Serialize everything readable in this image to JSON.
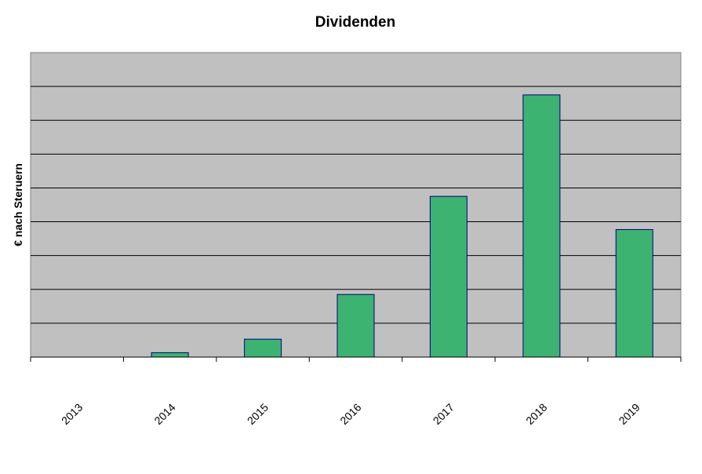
{
  "chart_data": {
    "type": "bar",
    "title": "Dividenden",
    "xlabel": "",
    "ylabel": "€ nach Steruern",
    "categories": [
      "2013",
      "2014",
      "2015",
      "2016",
      "2017",
      "2018",
      "2019"
    ],
    "series": [
      {
        "values": [
          0,
          0.13,
          0.53,
          1.85,
          4.75,
          7.75,
          3.77
        ]
      }
    ],
    "ylim": [
      0,
      9
    ],
    "y_gridlines": [
      1,
      2,
      3,
      4,
      5,
      6,
      7,
      8
    ],
    "y_tick_labels_shown": false,
    "grid": true,
    "legend": "none",
    "colors": {
      "plot_background": "#c0c0c0",
      "bar_fill": "#3cb371",
      "bar_stroke": "#000080",
      "gridline": "#000000"
    }
  }
}
